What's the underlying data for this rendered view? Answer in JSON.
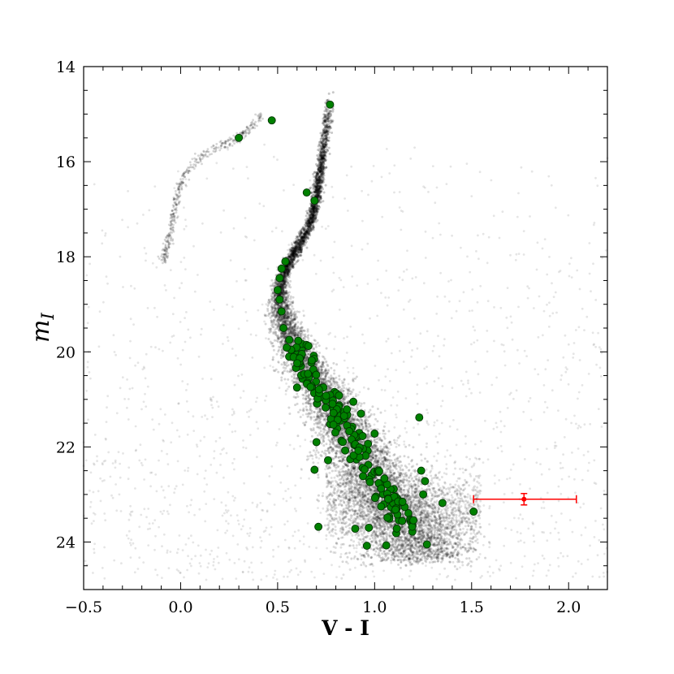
{
  "chart_data": {
    "type": "scatter",
    "title": "",
    "xlabel": "V - I",
    "ylabel_main": "m",
    "ylabel_sub": "I",
    "xlim": [
      -0.5,
      2.2
    ],
    "ylim": [
      25.0,
      14.0
    ],
    "y_inverted": true,
    "grid": false,
    "legend": "none",
    "x_ticks": [
      "−0.5",
      "0.0",
      "0.5",
      "1.0",
      "1.5",
      "2.0"
    ],
    "y_ticks": [
      "14",
      "16",
      "18",
      "20",
      "22",
      "24"
    ],
    "colors": {
      "background_points": "#000000",
      "highlight_fill": "#008000",
      "highlight_edge": "#003300",
      "error_bar": "#ff0000"
    },
    "sequence_ridge": [
      [
        0.77,
        14.6
      ],
      [
        0.76,
        15.0
      ],
      [
        0.74,
        15.6
      ],
      [
        0.72,
        16.2
      ],
      [
        0.7,
        16.8
      ],
      [
        0.67,
        17.3
      ],
      [
        0.62,
        17.7
      ],
      [
        0.56,
        18.1
      ],
      [
        0.52,
        18.5
      ],
      [
        0.51,
        18.9
      ],
      [
        0.53,
        19.3
      ],
      [
        0.57,
        19.7
      ],
      [
        0.62,
        20.1
      ],
      [
        0.68,
        20.5
      ],
      [
        0.74,
        20.9
      ],
      [
        0.8,
        21.3
      ],
      [
        0.86,
        21.7
      ],
      [
        0.92,
        22.1
      ],
      [
        0.98,
        22.5
      ],
      [
        1.04,
        22.9
      ],
      [
        1.1,
        23.3
      ],
      [
        1.16,
        23.7
      ],
      [
        1.22,
        24.0
      ]
    ],
    "branch_ridge": [
      [
        0.42,
        15.0
      ],
      [
        0.36,
        15.3
      ],
      [
        0.3,
        15.5
      ],
      [
        0.22,
        15.65
      ],
      [
        0.12,
        15.85
      ],
      [
        0.03,
        16.2
      ],
      [
        -0.01,
        16.6
      ],
      [
        -0.03,
        17.0
      ],
      [
        -0.05,
        17.4
      ],
      [
        -0.07,
        17.8
      ],
      [
        -0.09,
        18.1
      ]
    ],
    "highlighted_stars": [
      [
        0.77,
        14.8
      ],
      [
        0.47,
        15.13
      ],
      [
        0.3,
        15.5
      ],
      [
        0.65,
        16.65
      ],
      [
        0.69,
        16.82
      ],
      [
        1.23,
        21.38
      ],
      [
        0.7,
        21.9
      ],
      [
        0.69,
        22.48
      ],
      [
        0.76,
        22.28
      ],
      [
        0.71,
        23.68
      ],
      [
        1.51,
        23.36
      ],
      [
        1.35,
        23.18
      ],
      [
        1.24,
        22.5
      ],
      [
        1.26,
        22.72
      ],
      [
        1.25,
        23.0
      ],
      [
        0.96,
        24.08
      ],
      [
        1.06,
        24.07
      ],
      [
        1.27,
        24.05
      ],
      [
        0.9,
        23.72
      ],
      [
        0.97,
        23.7
      ],
      [
        0.6,
        20.75
      ],
      [
        0.89,
        21.05
      ],
      [
        0.93,
        21.3
      ],
      [
        1.0,
        21.72
      ],
      [
        0.54,
        18.1
      ],
      [
        0.52,
        18.25
      ],
      [
        0.51,
        18.45
      ],
      [
        0.5,
        18.7
      ],
      [
        0.51,
        18.9
      ],
      [
        0.52,
        19.15
      ],
      [
        0.53,
        19.5
      ],
      [
        0.56,
        19.75
      ],
      [
        0.58,
        20.05
      ],
      [
        0.62,
        20.3
      ],
      [
        0.66,
        20.55
      ]
    ],
    "error_bar": {
      "x": 1.77,
      "y": 23.1,
      "x_err_low": 1.51,
      "x_err_high": 2.04,
      "y_err": 0.12
    }
  }
}
